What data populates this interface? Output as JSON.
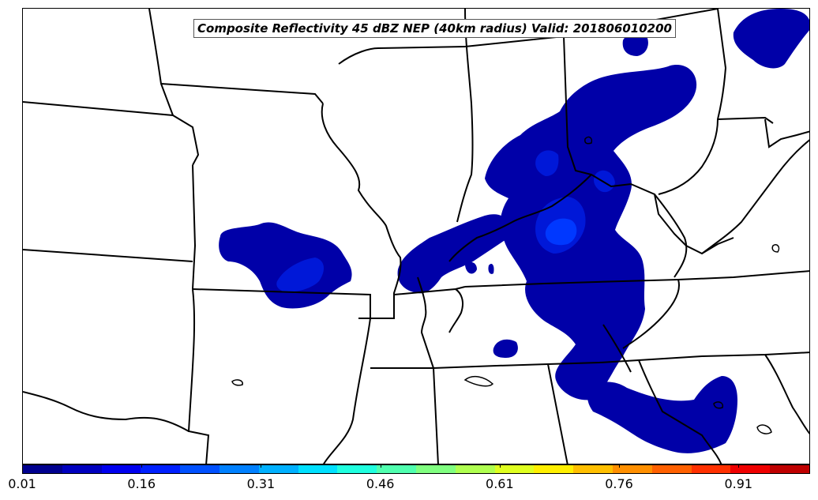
{
  "title": "Composite Reflectivity 45 dBZ NEP (40km radius) Valid: 201806010200",
  "colorbar": {
    "ticks": [
      "0.01",
      "0.16",
      "0.31",
      "0.46",
      "0.61",
      "0.76",
      "0.91"
    ],
    "colors": [
      "#00008f",
      "#0000bf",
      "#0000ef",
      "#0020ff",
      "#0050ff",
      "#0080ff",
      "#00b0ff",
      "#00e0ff",
      "#20ffdf",
      "#50ffaf",
      "#80ff80",
      "#afff50",
      "#dfff20",
      "#ffef00",
      "#ffbf00",
      "#ff8f00",
      "#ff6000",
      "#ff3000",
      "#ef0000",
      "#bf0000"
    ]
  },
  "colors": {
    "prob_low": "#0000a8",
    "prob_mid": "#0018d8",
    "prob_high": "#0038ff",
    "border": "#000000"
  }
}
